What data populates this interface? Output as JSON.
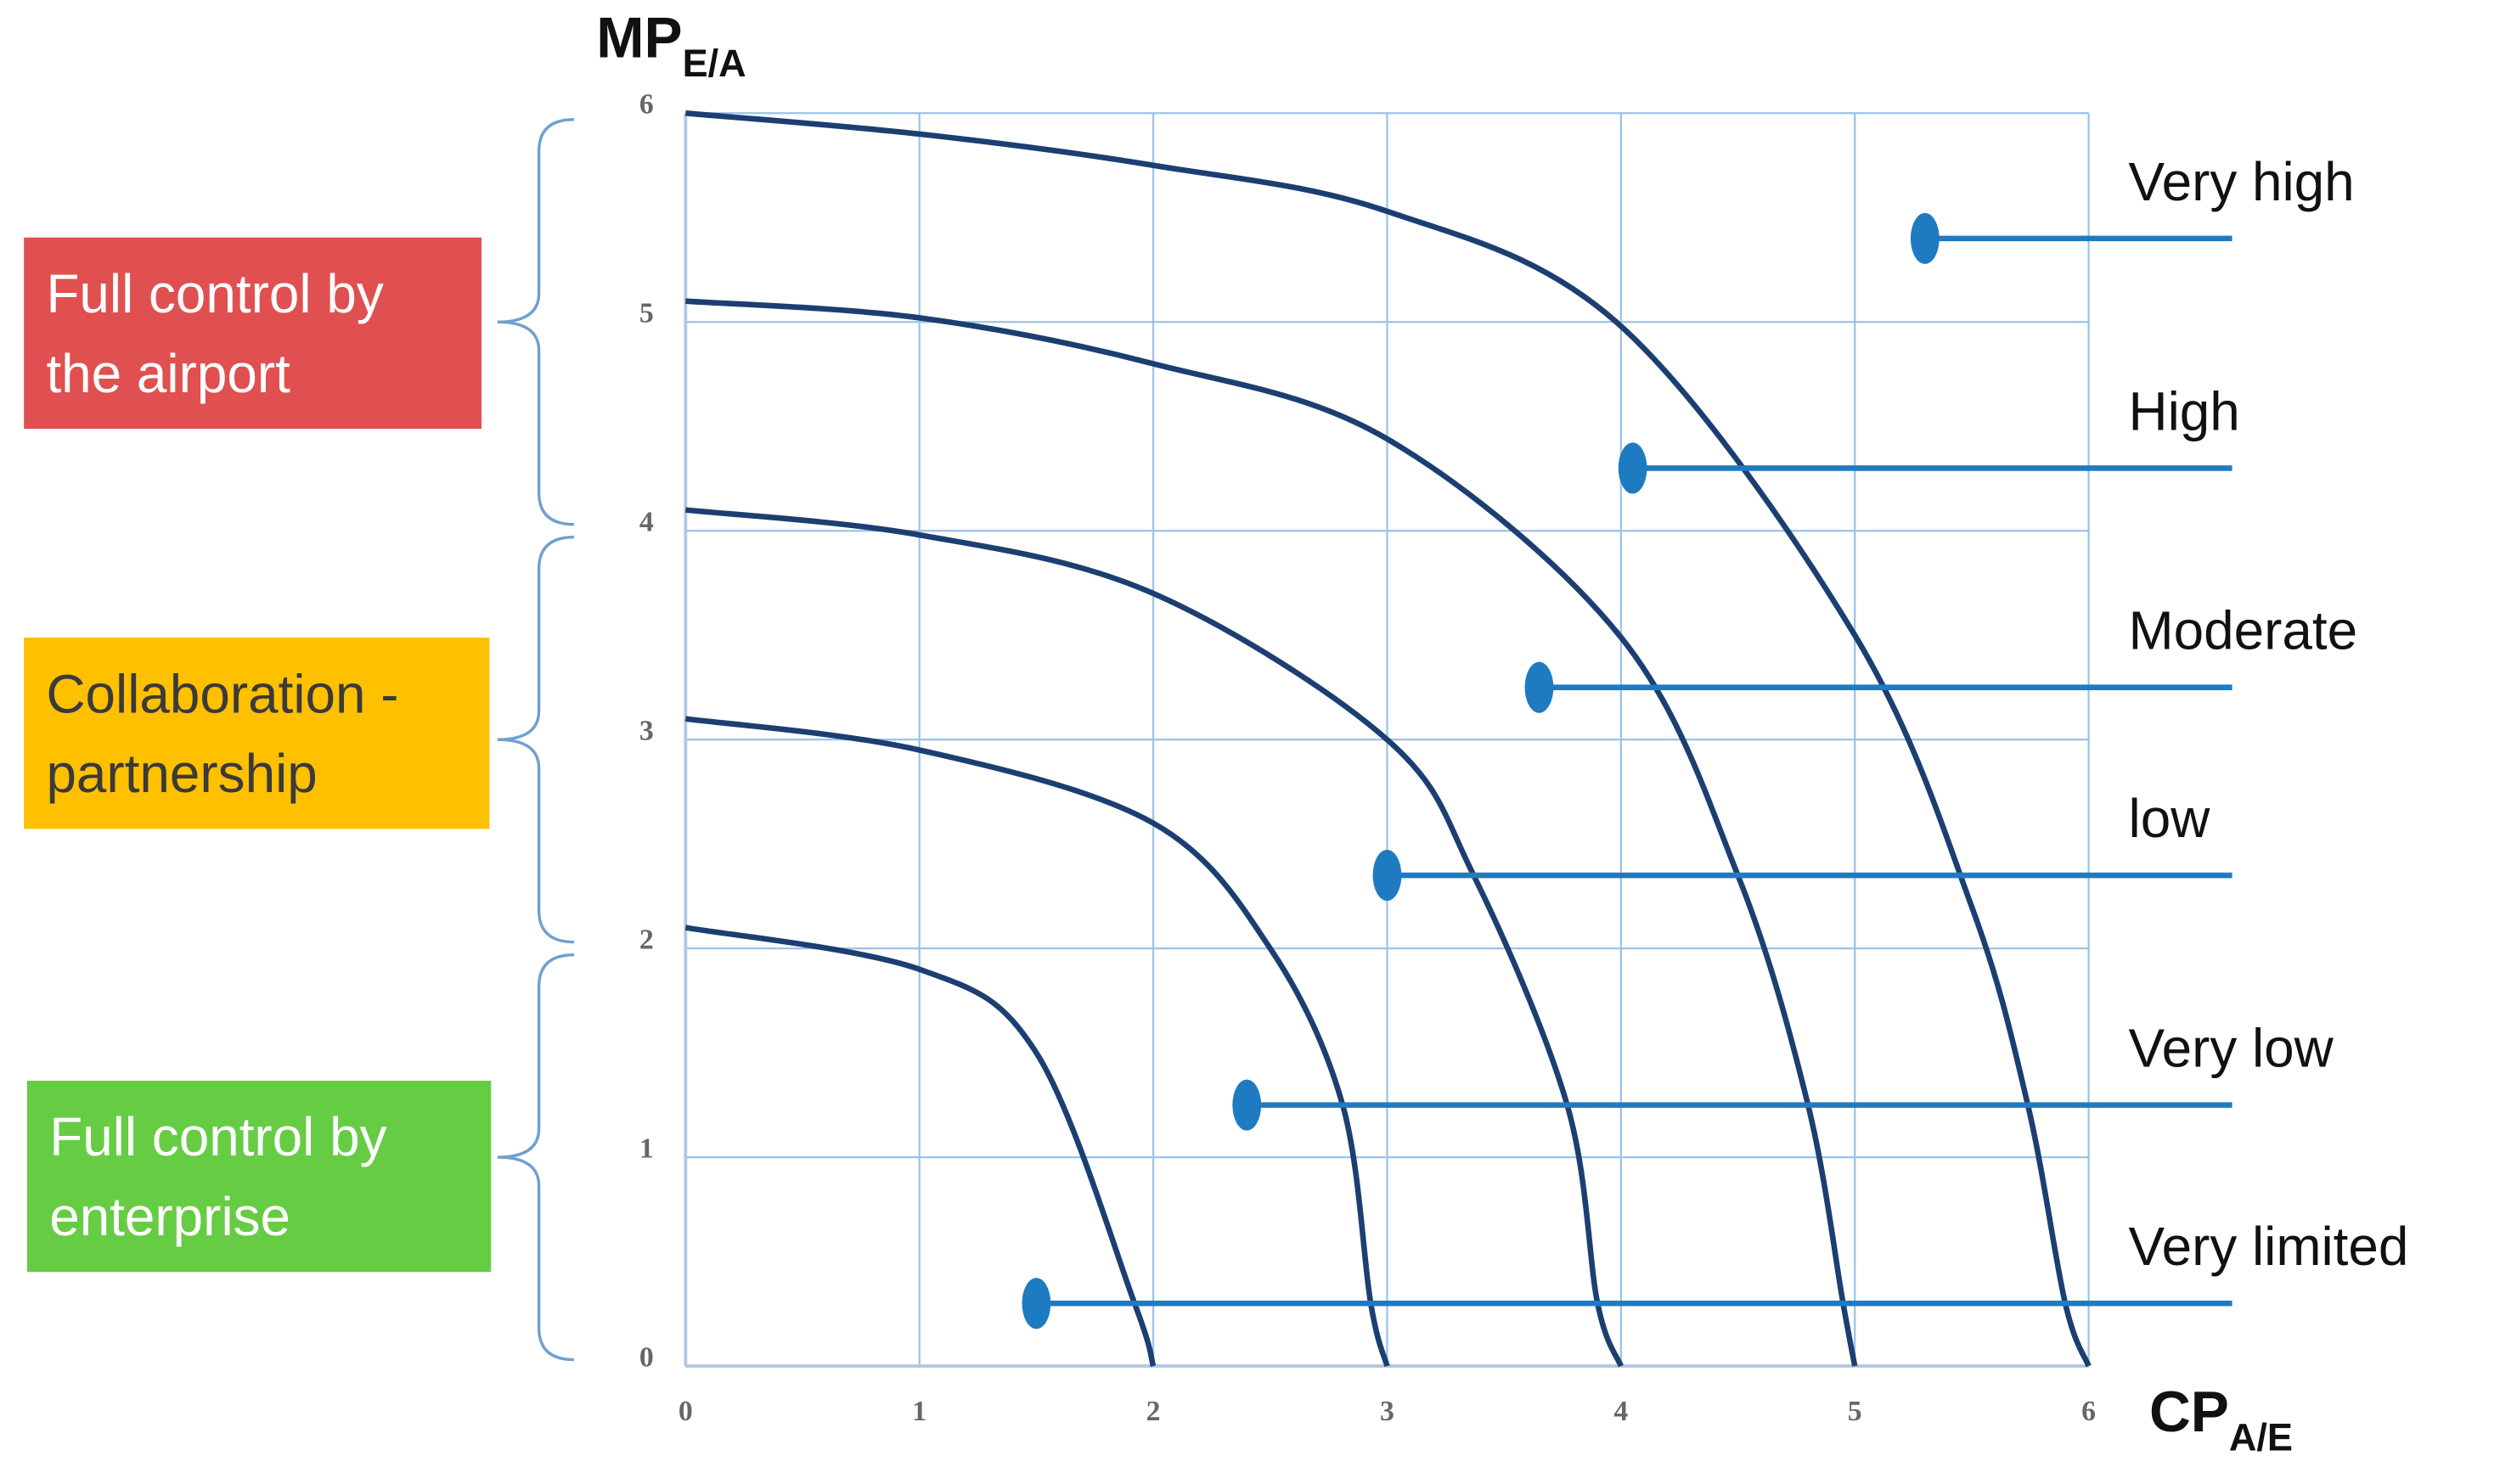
{
  "chart_data": {
    "type": "line",
    "y_label": {
      "main": "MP",
      "sub": "E/A"
    },
    "x_label": {
      "main": "CP",
      "sub": "A/E"
    },
    "xlim": [
      0,
      6
    ],
    "ylim": [
      0,
      6
    ],
    "xticks": [
      0,
      1,
      2,
      3,
      4,
      5,
      6
    ],
    "yticks": [
      0,
      1,
      2,
      3,
      4,
      5,
      6
    ],
    "grid": true,
    "grid_color": "#9cc3e6",
    "series": [
      {
        "color": "#1c3f72",
        "x": [
          0,
          1,
          2,
          3,
          4,
          5,
          5.5,
          5.74,
          5.9,
          6
        ],
        "y": [
          6,
          5.9,
          5.75,
          5.53,
          4.98,
          3.5,
          2.2,
          1.25,
          0.3,
          0
        ]
      },
      {
        "color": "#1c3f72",
        "x": [
          0,
          1,
          2,
          3,
          4,
          4.5,
          4.8,
          4.95,
          5
        ],
        "y": [
          5.1,
          5.02,
          4.8,
          4.44,
          3.49,
          2.35,
          1.25,
          0.3,
          0
        ]
      },
      {
        "color": "#1c3f72",
        "x": [
          0,
          1,
          2,
          3,
          3.37,
          3.77,
          3.9,
          4
        ],
        "y": [
          4.1,
          3.98,
          3.7,
          3.0,
          2.35,
          1.25,
          0.3,
          0
        ]
      },
      {
        "color": "#1c3f72",
        "x": [
          0,
          1,
          2,
          2.5,
          2.81,
          2.93,
          3
        ],
        "y": [
          3.1,
          2.95,
          2.6,
          2.0,
          1.25,
          0.3,
          0
        ]
      },
      {
        "color": "#1c3f72",
        "x": [
          0,
          1,
          1.5,
          1.92,
          2
        ],
        "y": [
          2.1,
          1.9,
          1.5,
          0.3,
          0
        ]
      }
    ],
    "marker_color": "#1f7bc1",
    "markers": [
      {
        "label": "Very high",
        "x": 5.3,
        "y": 5.4
      },
      {
        "label": "High",
        "x": 4.05,
        "y": 4.3
      },
      {
        "label": "Moderate",
        "x": 3.65,
        "y": 3.25
      },
      {
        "label": "low",
        "x": 3.0,
        "y": 2.35
      },
      {
        "label": "Very low",
        "x": 2.4,
        "y": 1.25
      },
      {
        "label": "Very limited",
        "x": 1.5,
        "y": 0.3
      }
    ],
    "bands": [
      {
        "lines": [
          "Full control by",
          "the airport"
        ],
        "color": "#e05050",
        "text_color": "#ffffff",
        "range": [
          4,
          6
        ]
      },
      {
        "lines": [
          "Collaboration -",
          "partnership"
        ],
        "color": "#ffc000",
        "text_color": "#3a3a3a",
        "range": [
          2,
          4
        ]
      },
      {
        "lines": [
          "Full control by",
          "enterprise"
        ],
        "color": "#66cc44",
        "text_color": "#ffffff",
        "range": [
          0,
          2
        ]
      }
    ]
  }
}
